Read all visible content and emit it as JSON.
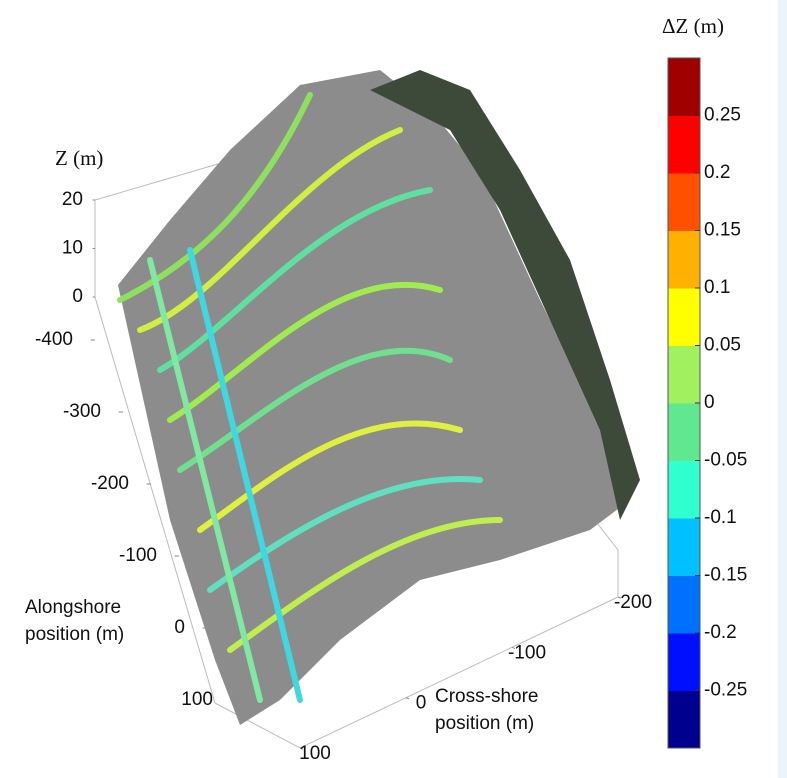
{
  "chart_data": {
    "type": "surface3d",
    "zlabel": "Z (m)",
    "zlim": [
      0,
      20
    ],
    "zticks": [
      0,
      10,
      20
    ],
    "ylabel": "Alongshore position (m)",
    "ylim": [
      -400,
      100
    ],
    "yticks": [
      -400,
      -300,
      -200,
      -100,
      0,
      100
    ],
    "xlabel": "Cross-shore position (m)",
    "xlim": [
      100,
      -200
    ],
    "xticks": [
      100,
      0,
      -100,
      -200
    ],
    "colorbar": {
      "title": "ΔZ (m)",
      "clim": [
        -0.3,
        0.3
      ],
      "ticks": [
        0.25,
        0.2,
        0.15,
        0.1,
        0.05,
        0,
        -0.05,
        -0.1,
        -0.15,
        -0.2,
        -0.25
      ],
      "colors": [
        "#00008f",
        "#0010ff",
        "#0070ff",
        "#00c0ff",
        "#30ffd0",
        "#60e890",
        "#a0f060",
        "#ffff00",
        "#ffb000",
        "#ff5000",
        "#ff0000",
        "#a00000"
      ]
    }
  }
}
